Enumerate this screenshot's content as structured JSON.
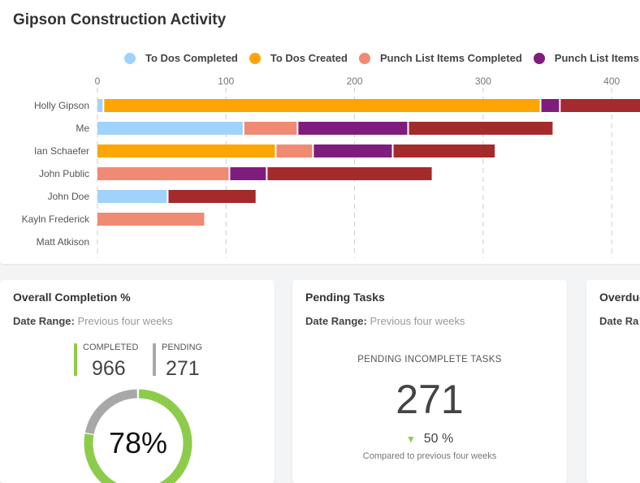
{
  "chart_data": {
    "type": "bar",
    "orientation": "horizontal",
    "stacked": true,
    "title": "Gipson Construction Activity",
    "categories": [
      "Holly Gipson",
      "Me",
      "Ian Schaefer",
      "John  Public",
      "John Doe",
      "Kayln Frederick",
      "Matt Atkison"
    ],
    "x_ticks": [
      "0",
      "100",
      "200",
      "300",
      "400"
    ],
    "xlim": [
      0,
      420
    ],
    "grid": true,
    "legend_position": "top",
    "series": [
      {
        "name": "To Dos Completed",
        "color": "#9fd3fb",
        "values": [
          4,
          113,
          0,
          0,
          54,
          0,
          0
        ]
      },
      {
        "name": "To Dos Created",
        "color": "#ffa500",
        "values": [
          340,
          0,
          138,
          0,
          0,
          0,
          0
        ]
      },
      {
        "name": "Punch List Items Completed",
        "color": "#f08a73",
        "values": [
          0,
          42,
          29,
          102,
          0,
          83,
          0
        ]
      },
      {
        "name": "Punch List Items",
        "color": "#7f1d7f",
        "values": [
          15,
          86,
          62,
          29,
          0,
          0,
          0
        ]
      },
      {
        "color": "#a42a2c",
        "values": [
          80,
          113,
          80,
          129,
          69,
          0,
          0
        ]
      }
    ]
  },
  "completion": {
    "title": "Overall Completion %",
    "date_label": "Date Range:",
    "date_value": "Previous four weeks",
    "completed_label": "COMPLETED",
    "completed_value": "966",
    "pending_label": "PENDING",
    "pending_value": "271",
    "percent": "78%",
    "percent_value": 78,
    "green": "#8dcc4a",
    "gray": "#a8a8a8"
  },
  "pending": {
    "title": "Pending Tasks",
    "date_label": "Date Range:",
    "date_value": "Previous four weeks",
    "label": "PENDING INCOMPLETE TASKS",
    "value": "271",
    "change": "50 %",
    "compare": "Compared to previous four weeks"
  },
  "overdue": {
    "title": "Overdue",
    "date_label": "Date Ra"
  }
}
